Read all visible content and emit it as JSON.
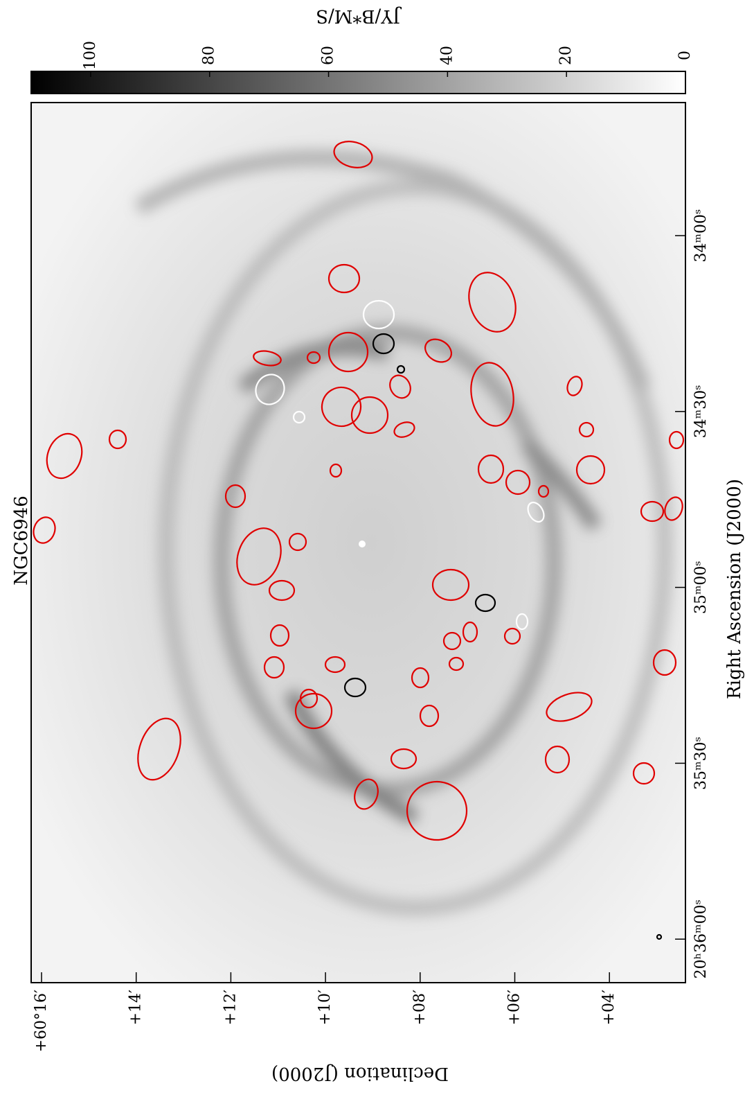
{
  "figure": {
    "title": "NGC6946",
    "xlabel": "Right Ascension (J2000)",
    "ylabel": "Declination (J2000)",
    "colorbar_label": "JY/B*M/S",
    "colorbar_lim": [
      0,
      110
    ],
    "colorbar_ticks": [
      0,
      20,
      40,
      60,
      80,
      100
    ],
    "ra_ticks": [
      "34ᵐ00ˢ",
      "34ᵐ30ˢ",
      "35ᵐ00ˢ",
      "35ᵐ30ˢ",
      "20ʰ36ᵐ00ˢ"
    ],
    "dec_ticks": [
      "+60°16′",
      "+14′",
      "+12′",
      "+10′",
      "+08′",
      "+06′",
      "+04′"
    ]
  }
}
